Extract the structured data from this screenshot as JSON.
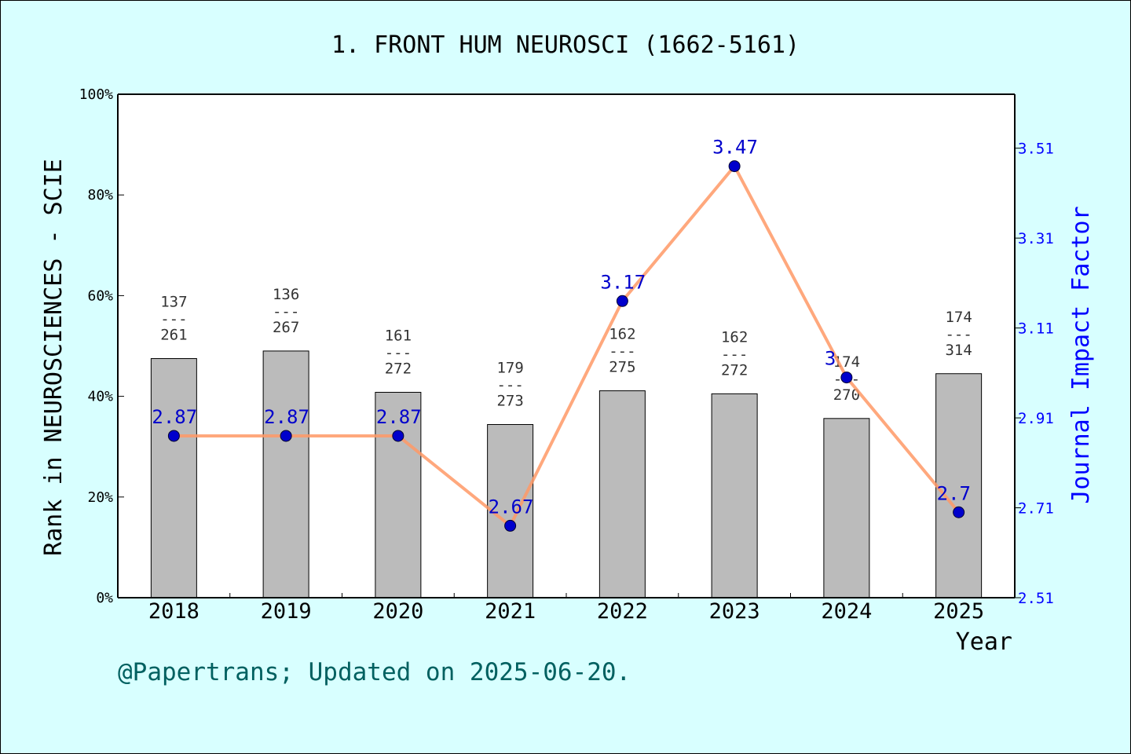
{
  "chart_data": {
    "type": "bar",
    "title": "1. FRONT HUM NEUROSCI (1662-5161)",
    "xlabel": "Year",
    "ylabel": "Rank in NEUROSCIENCES - SCIE",
    "y2label": "Journal Impact Factor",
    "footer": "@Papertrans; Updated on 2025-06-20.",
    "categories": [
      "2018",
      "2019",
      "2020",
      "2021",
      "2022",
      "2023",
      "2024",
      "2025"
    ],
    "ylim": [
      0,
      100
    ],
    "yticks": [
      "0%",
      "20%",
      "40%",
      "60%",
      "80%",
      "100%"
    ],
    "y2lim": [
      2.51,
      3.63
    ],
    "y2ticks": [
      "2.51",
      "2.71",
      "2.91",
      "3.11",
      "3.31",
      "3.51"
    ],
    "grid": false,
    "series": [
      {
        "kind": "bar",
        "ranks": [
          "137",
          "136",
          "161",
          "179",
          "162",
          "162",
          "174",
          "174"
        ],
        "totals": [
          "261",
          "267",
          "272",
          "273",
          "275",
          "272",
          "270",
          "314"
        ],
        "values": [
          47.5,
          49.0,
          40.8,
          34.4,
          41.1,
          40.5,
          35.6,
          44.5
        ]
      },
      {
        "kind": "line",
        "values": [
          2.87,
          2.87,
          2.87,
          2.67,
          3.17,
          3.47,
          3,
          2.7
        ],
        "labels": [
          "2.87",
          "2.87",
          "2.87",
          "2.67",
          "3.17",
          "3.47",
          "3",
          "2.7"
        ]
      }
    ],
    "colors": {
      "bar": "#bbbbbb",
      "line": "#ff9966",
      "marker": "#0000cc",
      "right_axis": "#0000ff",
      "footer": "#006060",
      "background": "#d8ffff"
    },
    "fraction_bar": "---"
  }
}
